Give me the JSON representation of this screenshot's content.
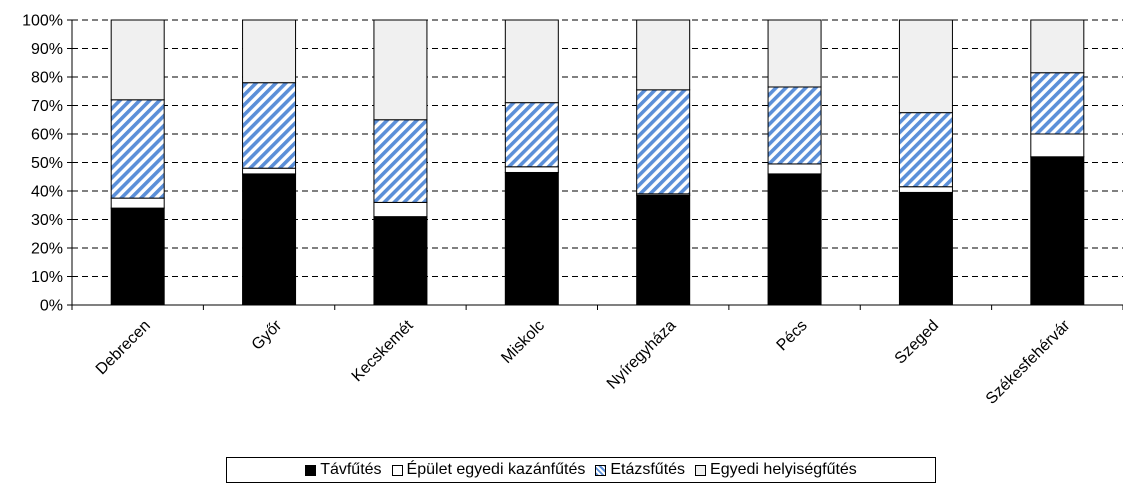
{
  "chart_data": {
    "type": "bar",
    "stacked": true,
    "percent": true,
    "categories": [
      "Debrecen",
      "Győr",
      "Kecskemét",
      "Miskolc",
      "Nyíregyháza",
      "Pécs",
      "Szeged",
      "Székesfehérvár"
    ],
    "series": [
      {
        "name": "Távfűtés",
        "color": "#000000",
        "fill": "solid",
        "values": [
          34,
          46,
          31,
          46.5,
          38.5,
          46,
          39.5,
          52
        ]
      },
      {
        "name": "Épület egyedi kazánfűtés",
        "color": "#ffffff",
        "fill": "solid",
        "values": [
          3.5,
          2,
          5,
          2,
          0.5,
          3.5,
          2,
          8
        ]
      },
      {
        "name": "Etázsfűtés",
        "color": "#5b8fd8",
        "fill": "diagonal-hatch",
        "values": [
          34.5,
          30,
          29,
          22.5,
          36.5,
          27,
          26,
          21.5
        ]
      },
      {
        "name": "Egyedi helyiségfűtés",
        "color": "#f0f0f0",
        "fill": "solid",
        "values": [
          28,
          22,
          35,
          29,
          24.5,
          23.5,
          32.5,
          18.5
        ]
      }
    ],
    "ylim": [
      0,
      100
    ],
    "yticks": [
      "0%",
      "10%",
      "20%",
      "30%",
      "40%",
      "50%",
      "60%",
      "70%",
      "80%",
      "90%",
      "100%"
    ],
    "grid": "dashed-horizontal",
    "legend_position": "bottom",
    "title": "",
    "xlabel": "",
    "ylabel": ""
  }
}
